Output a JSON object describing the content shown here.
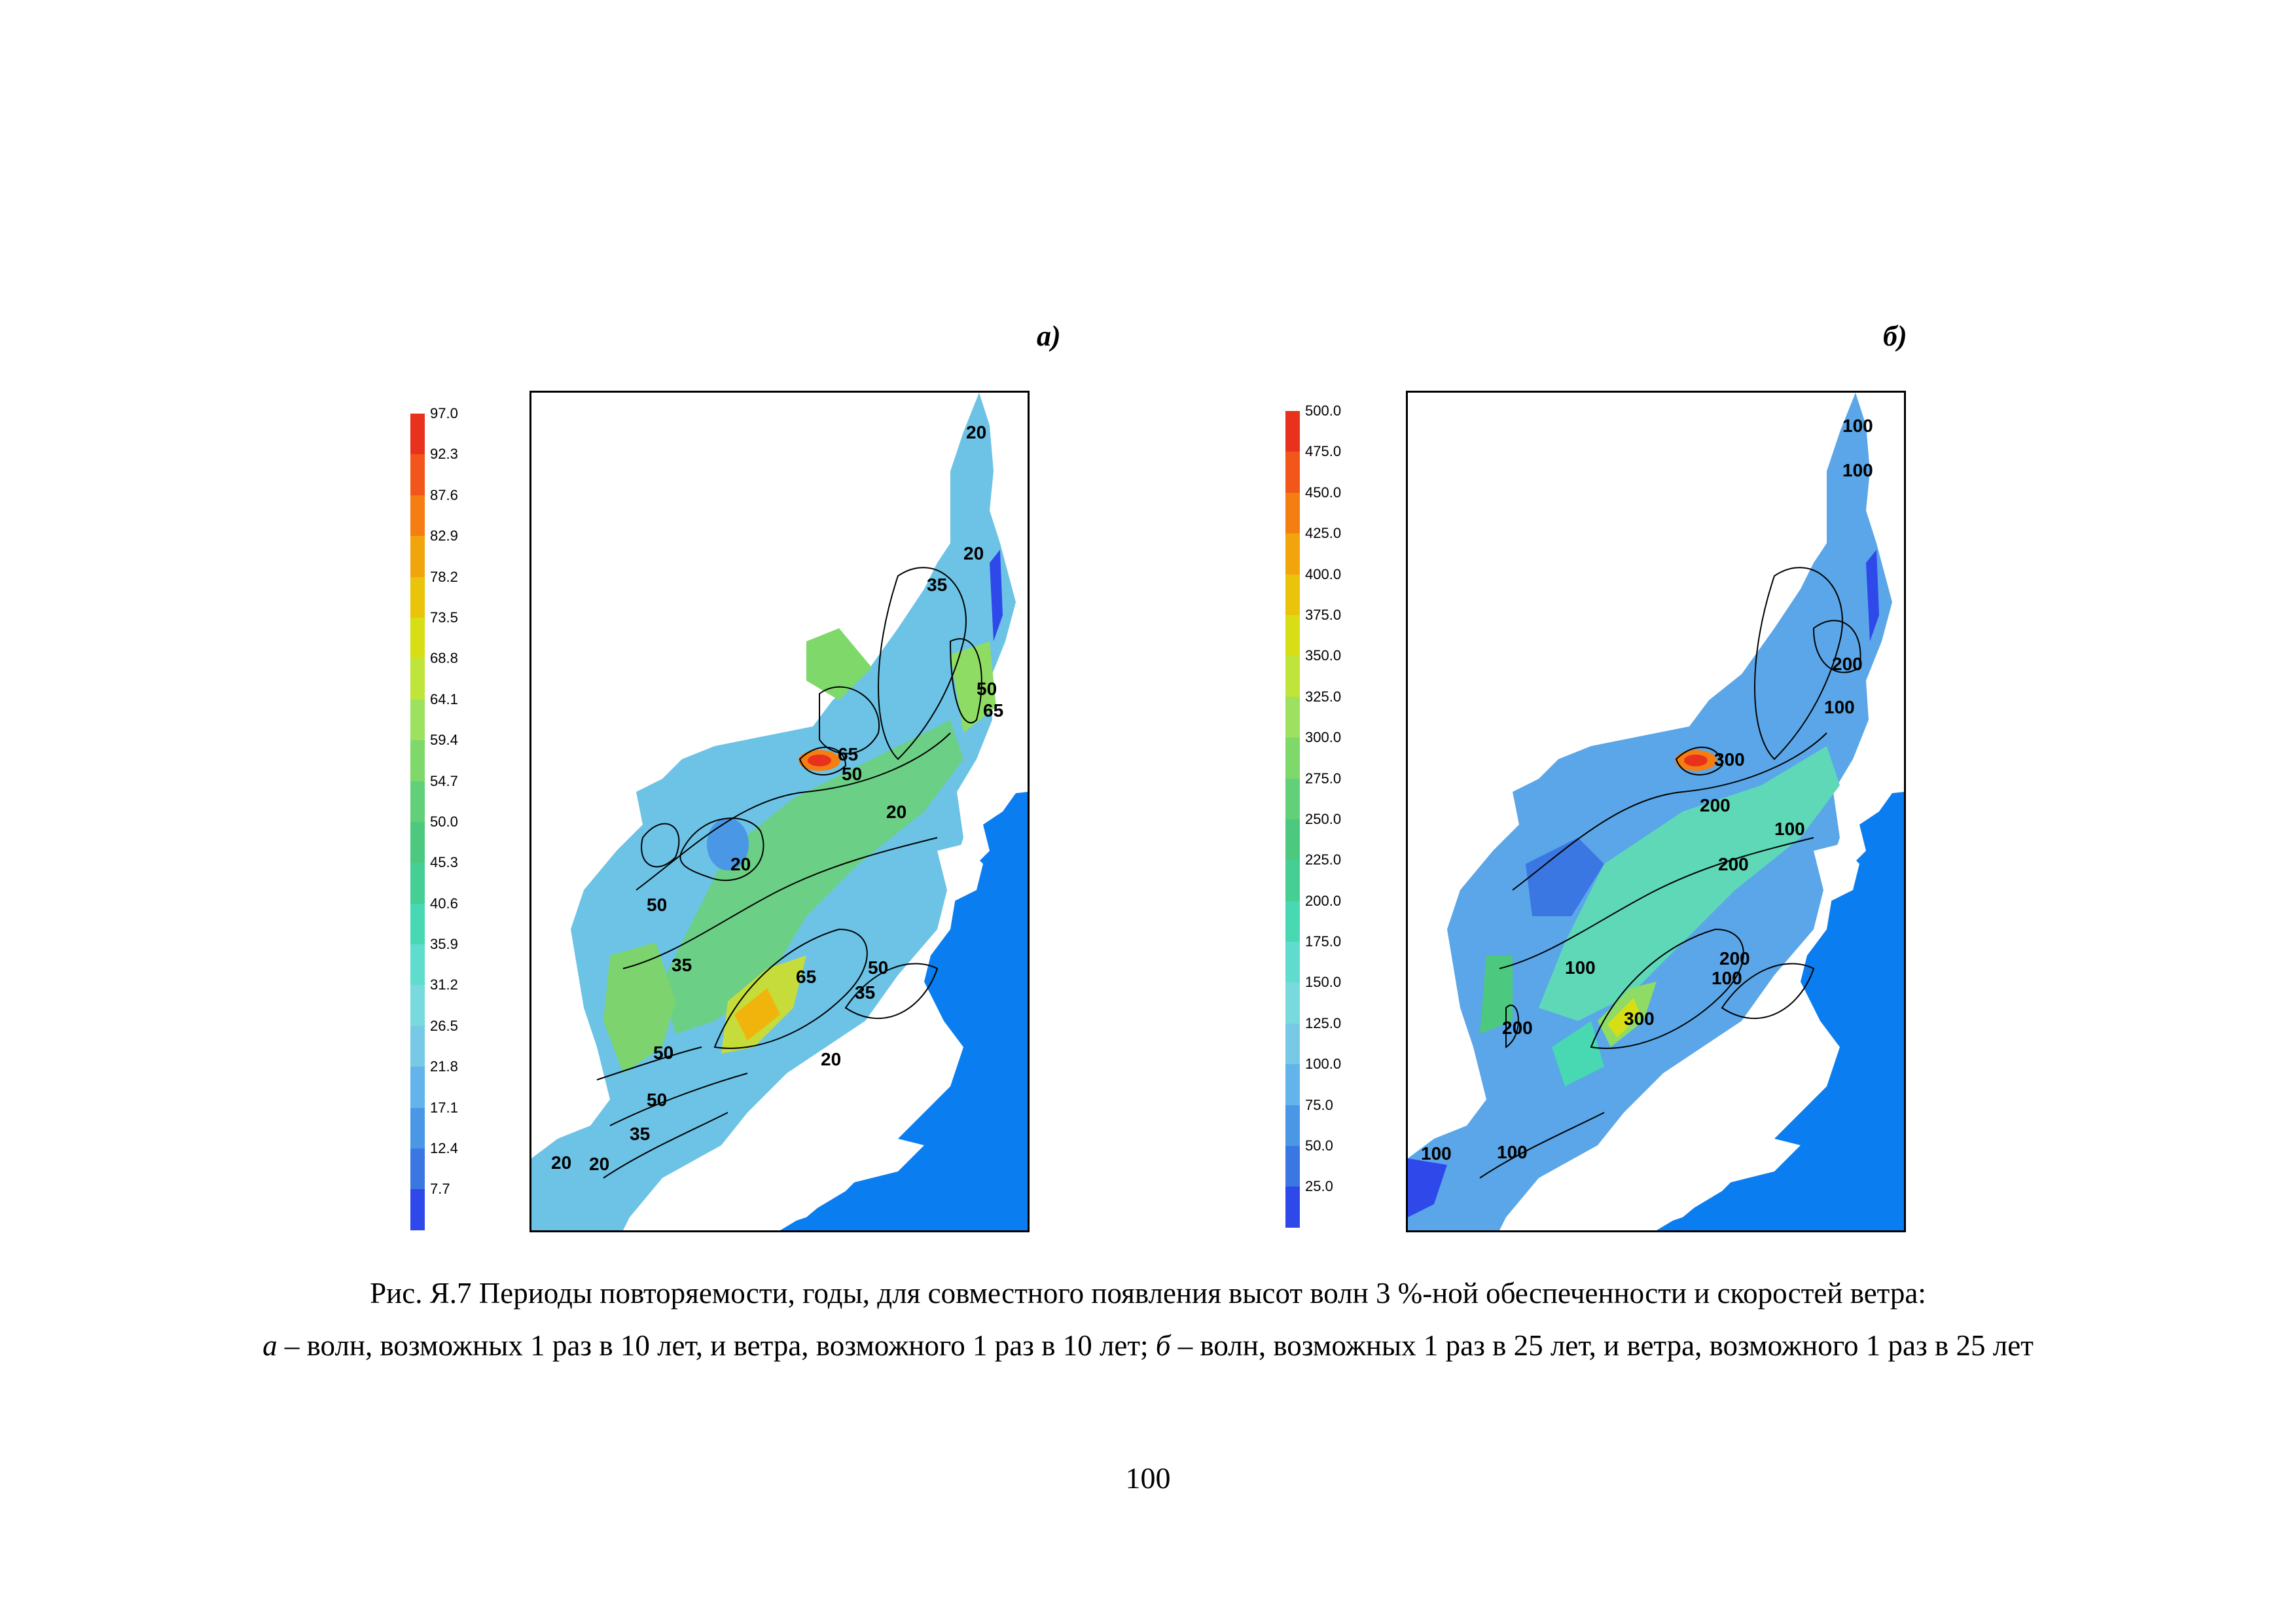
{
  "panels": [
    {
      "label": "а)",
      "legend": [
        "97.0",
        "92.3",
        "87.6",
        "82.9",
        "78.2",
        "73.5",
        "68.8",
        "64.1",
        "59.4",
        "54.7",
        "50.0",
        "45.3",
        "40.6",
        "35.9",
        "31.2",
        "26.5",
        "21.8",
        "17.1",
        "12.4",
        "7.7"
      ],
      "contour_labels": [
        "20",
        "20",
        "35",
        "50",
        "65",
        "65",
        "50",
        "20",
        "20",
        "50",
        "35",
        "65",
        "50",
        "35",
        "20",
        "50",
        "50",
        "35",
        "20",
        "20"
      ]
    },
    {
      "label": "б)",
      "legend": [
        "500.0",
        "475.0",
        "450.0",
        "425.0",
        "400.0",
        "375.0",
        "350.0",
        "325.0",
        "300.0",
        "275.0",
        "250.0",
        "225.0",
        "200.0",
        "175.0",
        "150.0",
        "125.0",
        "100.0",
        "75.0",
        "50.0",
        "25.0"
      ],
      "contour_labels": [
        "100",
        "100",
        "200",
        "100",
        "300",
        "200",
        "200",
        "100",
        "100",
        "200",
        "100",
        "300",
        "200",
        "100",
        "100"
      ]
    }
  ],
  "legend_colors": [
    "#e8321e",
    "#f2561a",
    "#f57e12",
    "#f2a40c",
    "#e9c40a",
    "#d8de16",
    "#bfe43a",
    "#9ee060",
    "#7fd86a",
    "#62d078",
    "#4cc97e",
    "#46cf95",
    "#48d8b2",
    "#5fdccd",
    "#78dadd",
    "#77c9e6",
    "#62b4ea",
    "#4a97e6",
    "#3b77e2",
    "#2e48ea"
  ],
  "caption": {
    "line1": "Рис. Я.7 Периоды повторяемости, годы, для совместного появления высот волн 3 %-ной обеспеченности и скоростей ветра:",
    "a_letter": "а",
    "a_text": " – волн, возможных 1 раз в 10 лет, и ветра, возможного 1 раз в 10 лет; ",
    "b_letter": "б",
    "b_text": " – волн, возможных 1 раз в 25 лет, и ветра, возможного 1 раз в 25 лет"
  },
  "page_number": "100"
}
